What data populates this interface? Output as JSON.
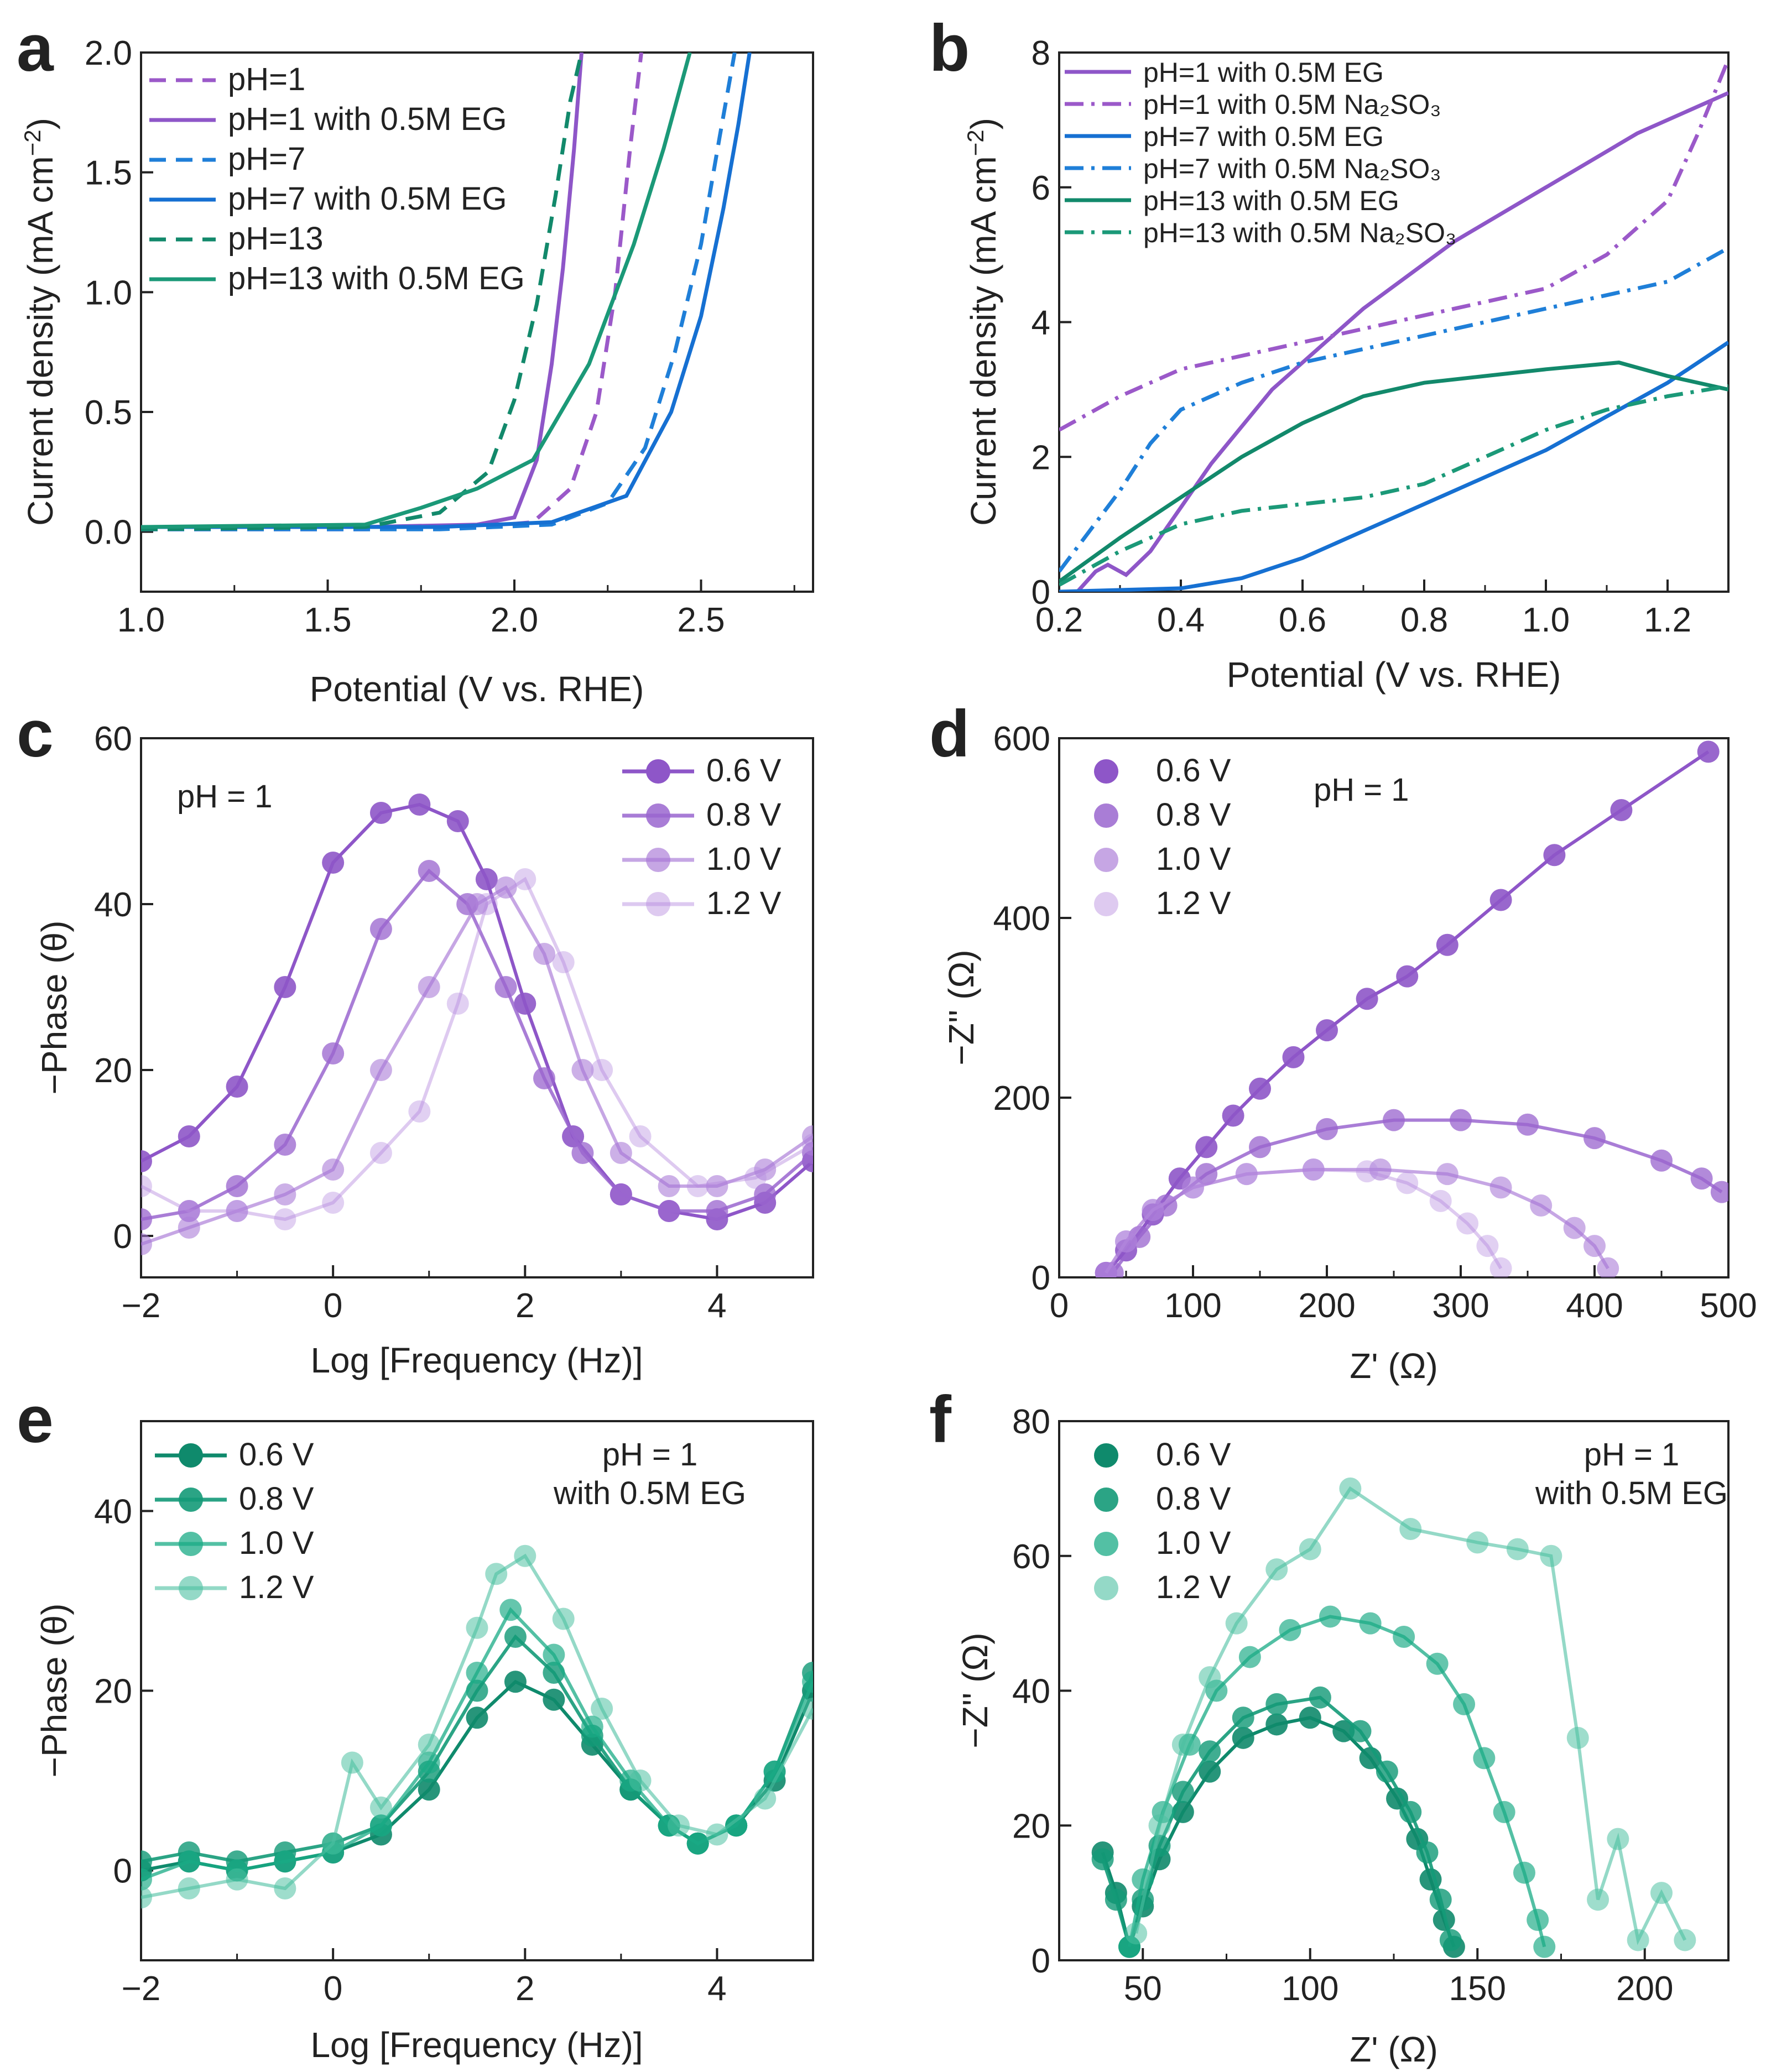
{
  "chart_data": [
    {
      "panel": "a",
      "type": "line",
      "xlabel": "Potential (V vs. RHE)",
      "ylabel": "Current density (mA cm−2)",
      "xlim": [
        1.0,
        2.8
      ],
      "ylim": [
        -0.25,
        2.0
      ],
      "xticks": [
        1.0,
        1.5,
        2.0,
        2.5
      ],
      "yticks": [
        0.0,
        0.5,
        1.0,
        1.5,
        2.0
      ],
      "legend_position": "top-left",
      "series": [
        {
          "name": "pH=1",
          "color": "#9b59c9",
          "dash": "dashed",
          "x": [
            1.0,
            1.6,
            1.9,
            2.05,
            2.15,
            2.22,
            2.27,
            2.31,
            2.34
          ],
          "y": [
            0.01,
            0.01,
            0.02,
            0.04,
            0.18,
            0.5,
            1.0,
            1.6,
            2.0
          ]
        },
        {
          "name": "pH=1 with 0.5M EG",
          "color": "#8e56c8",
          "dash": "solid",
          "x": [
            1.0,
            1.6,
            1.9,
            2.0,
            2.06,
            2.1,
            2.13,
            2.16,
            2.18
          ],
          "y": [
            0.02,
            0.02,
            0.03,
            0.06,
            0.3,
            0.7,
            1.1,
            1.6,
            2.0
          ]
        },
        {
          "name": "pH=7",
          "color": "#1f7fd8",
          "dash": "dashed",
          "x": [
            1.0,
            1.8,
            2.1,
            2.25,
            2.35,
            2.43,
            2.5,
            2.55,
            2.59
          ],
          "y": [
            0.01,
            0.01,
            0.03,
            0.12,
            0.35,
            0.75,
            1.2,
            1.65,
            2.0
          ]
        },
        {
          "name": "pH=7 with 0.5M EG",
          "color": "#1670d2",
          "dash": "solid",
          "x": [
            1.0,
            1.8,
            2.1,
            2.3,
            2.42,
            2.5,
            2.56,
            2.6,
            2.63
          ],
          "y": [
            0.02,
            0.02,
            0.04,
            0.15,
            0.5,
            0.9,
            1.35,
            1.7,
            2.0
          ]
        },
        {
          "name": "pH=13",
          "color": "#12896b",
          "dash": "dashed",
          "x": [
            1.0,
            1.6,
            1.8,
            1.93,
            2.0,
            2.06,
            2.11,
            2.15,
            2.18
          ],
          "y": [
            0.01,
            0.02,
            0.08,
            0.25,
            0.55,
            0.95,
            1.4,
            1.8,
            2.0
          ]
        },
        {
          "name": "pH=13 with 0.5M EG",
          "color": "#1b9978",
          "dash": "solid",
          "x": [
            1.0,
            1.6,
            1.75,
            1.9,
            2.05,
            2.2,
            2.32,
            2.4,
            2.47
          ],
          "y": [
            0.02,
            0.03,
            0.1,
            0.18,
            0.3,
            0.7,
            1.2,
            1.6,
            2.0
          ]
        }
      ]
    },
    {
      "panel": "b",
      "type": "line",
      "xlabel": "Potential (V vs. RHE)",
      "ylabel": "Current density (mA cm−2)",
      "xlim": [
        0.2,
        1.3
      ],
      "ylim": [
        0,
        8
      ],
      "xticks": [
        0.2,
        0.4,
        0.6,
        0.8,
        1.0,
        1.2
      ],
      "yticks": [
        0,
        2,
        4,
        6,
        8
      ],
      "legend_position": "top-left",
      "series": [
        {
          "name": "pH=1 with 0.5M EG",
          "color": "#8e56c8",
          "dash": "solid",
          "x": [
            0.23,
            0.26,
            0.28,
            0.31,
            0.35,
            0.45,
            0.55,
            0.7,
            0.85,
            1.0,
            1.15,
            1.3
          ],
          "y": [
            0.0,
            0.3,
            0.4,
            0.25,
            0.6,
            1.9,
            3.0,
            4.2,
            5.2,
            6.0,
            6.8,
            7.4
          ]
        },
        {
          "name": "pH=1 with 0.5M Na2SO3",
          "color": "#9b59c9",
          "dash": "dashdot",
          "x": [
            0.2,
            0.3,
            0.4,
            0.6,
            0.8,
            1.0,
            1.1,
            1.2,
            1.25,
            1.3
          ],
          "y": [
            2.4,
            2.9,
            3.3,
            3.7,
            4.1,
            4.5,
            5.0,
            5.8,
            6.8,
            7.9
          ]
        },
        {
          "name": "pH=7 with 0.5M EG",
          "color": "#1670d2",
          "dash": "solid",
          "x": [
            0.2,
            0.4,
            0.5,
            0.6,
            0.7,
            0.8,
            0.9,
            1.0,
            1.1,
            1.2,
            1.3
          ],
          "y": [
            0.0,
            0.05,
            0.2,
            0.5,
            0.9,
            1.3,
            1.7,
            2.1,
            2.6,
            3.1,
            3.7
          ]
        },
        {
          "name": "pH=7 with 0.5M Na2SO3",
          "color": "#1f7fd8",
          "dash": "dashdot",
          "x": [
            0.2,
            0.25,
            0.3,
            0.35,
            0.4,
            0.5,
            0.6,
            0.8,
            1.0,
            1.2,
            1.3
          ],
          "y": [
            0.3,
            0.9,
            1.5,
            2.2,
            2.7,
            3.1,
            3.4,
            3.8,
            4.2,
            4.6,
            5.1
          ]
        },
        {
          "name": "pH=13 with 0.5M EG",
          "color": "#12896b",
          "dash": "solid",
          "x": [
            0.2,
            0.3,
            0.4,
            0.5,
            0.6,
            0.7,
            0.8,
            0.9,
            1.0,
            1.12,
            1.2,
            1.3
          ],
          "y": [
            0.15,
            0.8,
            1.4,
            2.0,
            2.5,
            2.9,
            3.1,
            3.2,
            3.3,
            3.4,
            3.2,
            3.0
          ]
        },
        {
          "name": "pH=13 with 0.5M Na2SO3",
          "color": "#1b9978",
          "dash": "dashdot",
          "x": [
            0.2,
            0.3,
            0.4,
            0.5,
            0.6,
            0.7,
            0.8,
            0.9,
            1.0,
            1.1,
            1.2,
            1.3
          ],
          "y": [
            0.1,
            0.6,
            1.0,
            1.2,
            1.3,
            1.4,
            1.6,
            2.0,
            2.4,
            2.7,
            2.9,
            3.05
          ]
        }
      ]
    },
    {
      "panel": "c",
      "type": "scatter",
      "xlabel": "Log [Frequency (Hz)]",
      "ylabel": "−Phase (θ)",
      "xlim": [
        -2,
        5
      ],
      "ylim": [
        -5,
        60
      ],
      "xticks": [
        -2,
        0,
        2,
        4
      ],
      "yticks": [
        0,
        20,
        40,
        60
      ],
      "annotation": "pH = 1",
      "legend_position": "top-right",
      "series": [
        {
          "name": "0.6 V",
          "color": "#8e56c8",
          "opacity": 1.0,
          "x": [
            -2,
            -1.5,
            -1,
            -0.5,
            0,
            0.5,
            0.9,
            1.3,
            1.6,
            2,
            2.5,
            3,
            3.5,
            4,
            4.5,
            5
          ],
          "y": [
            9,
            12,
            18,
            30,
            45,
            51,
            52,
            50,
            43,
            28,
            12,
            5,
            3,
            2,
            4,
            9
          ]
        },
        {
          "name": "0.8 V",
          "color": "#9a66cf",
          "opacity": 0.85,
          "x": [
            -2,
            -1.5,
            -1,
            -0.5,
            0,
            0.5,
            1,
            1.4,
            1.8,
            2.2,
            2.6,
            3,
            3.5,
            4,
            4.5,
            5
          ],
          "y": [
            2,
            3,
            6,
            11,
            22,
            37,
            44,
            40,
            30,
            19,
            10,
            5,
            3,
            3,
            5,
            10
          ]
        },
        {
          "name": "1.0 V",
          "color": "#a777d6",
          "opacity": 0.65,
          "x": [
            -2,
            -1.5,
            -1,
            -0.5,
            0,
            0.5,
            1,
            1.5,
            1.8,
            2.2,
            2.6,
            3,
            3.5,
            4,
            4.5,
            5
          ],
          "y": [
            -1,
            1,
            3,
            5,
            8,
            20,
            30,
            40,
            42,
            34,
            20,
            10,
            6,
            6,
            8,
            12
          ]
        },
        {
          "name": "1.2 V",
          "color": "#b58ade",
          "opacity": 0.45,
          "x": [
            -2,
            -1.5,
            -1,
            -0.5,
            0,
            0.5,
            0.9,
            1.3,
            1.6,
            2,
            2.4,
            2.8,
            3.2,
            3.8,
            4.4,
            5
          ],
          "y": [
            6,
            3,
            3,
            2,
            4,
            10,
            15,
            28,
            40,
            43,
            33,
            20,
            12,
            6,
            7,
            11
          ]
        }
      ]
    },
    {
      "panel": "d",
      "type": "scatter",
      "xlabel": "Z' (Ω)",
      "ylabel": "−Z'' (Ω)",
      "xlim": [
        0,
        500
      ],
      "ylim": [
        0,
        600
      ],
      "xticks": [
        0,
        100,
        200,
        300,
        400,
        500
      ],
      "yticks": [
        0,
        200,
        400,
        600
      ],
      "annotation": "pH = 1",
      "legend_position": "top-left",
      "series": [
        {
          "name": "0.6 V",
          "color": "#8e56c8",
          "opacity": 1.0,
          "x": [
            35,
            50,
            70,
            90,
            110,
            130,
            150,
            175,
            200,
            230,
            260,
            290,
            330,
            370,
            420,
            485
          ],
          "y": [
            5,
            30,
            70,
            110,
            145,
            180,
            210,
            245,
            275,
            310,
            335,
            370,
            420,
            470,
            520,
            585
          ]
        },
        {
          "name": "0.8 V",
          "color": "#9a66cf",
          "opacity": 0.85,
          "x": [
            40,
            60,
            80,
            110,
            150,
            200,
            250,
            300,
            350,
            400,
            450,
            480,
            495
          ],
          "y": [
            5,
            45,
            80,
            115,
            145,
            165,
            175,
            175,
            170,
            155,
            130,
            110,
            95
          ]
        },
        {
          "name": "1.0 V",
          "color": "#a777d6",
          "opacity": 0.65,
          "x": [
            35,
            50,
            70,
            100,
            140,
            190,
            240,
            290,
            330,
            360,
            385,
            400,
            410
          ],
          "y": [
            5,
            40,
            75,
            100,
            115,
            120,
            120,
            115,
            100,
            80,
            55,
            35,
            10
          ]
        },
        {
          "name": "1.2 V",
          "color": "#b58ade",
          "opacity": 0.45,
          "x": [
            35,
            50,
            70,
            100,
            140,
            190,
            230,
            260,
            285,
            305,
            320,
            330
          ],
          "y": [
            5,
            40,
            75,
            100,
            115,
            120,
            118,
            105,
            85,
            60,
            35,
            10
          ]
        }
      ]
    },
    {
      "panel": "e",
      "type": "scatter",
      "xlabel": "Log [Frequency (Hz)]",
      "ylabel": "−Phase (θ)",
      "xlim": [
        -2,
        5
      ],
      "ylim": [
        -10,
        50
      ],
      "xticks": [
        -2,
        0,
        2,
        4
      ],
      "yticks": [
        0,
        20,
        40
      ],
      "annotation": "pH = 1\nwith 0.5M EG",
      "legend_position": "top-left",
      "series": [
        {
          "name": "0.6 V",
          "color": "#0f8a6c",
          "opacity": 1.0,
          "x": [
            -2,
            -1.5,
            -1,
            -0.5,
            0,
            0.5,
            1,
            1.5,
            1.9,
            2.3,
            2.7,
            3.1,
            3.5,
            3.8,
            4.2,
            4.6,
            5
          ],
          "y": [
            0,
            1,
            0,
            1,
            2,
            4,
            9,
            17,
            21,
            19,
            14,
            9,
            5,
            3,
            5,
            10,
            20
          ]
        },
        {
          "name": "0.8 V",
          "color": "#149a78",
          "opacity": 0.9,
          "x": [
            -2,
            -1.5,
            -1,
            -0.5,
            0,
            0.5,
            1,
            1.5,
            1.9,
            2.3,
            2.7,
            3.1,
            3.5,
            3.8,
            4.2,
            4.6,
            5
          ],
          "y": [
            1,
            2,
            1,
            2,
            3,
            5,
            11,
            20,
            26,
            22,
            15,
            9,
            5,
            3,
            5,
            11,
            22
          ]
        },
        {
          "name": "1.0 V",
          "color": "#1aab86",
          "opacity": 0.75,
          "x": [
            -2,
            -1.5,
            -1,
            -0.5,
            0,
            0.5,
            1,
            1.5,
            1.85,
            2.3,
            2.7,
            3.1,
            3.5,
            3.8,
            4.2,
            4.6,
            5
          ],
          "y": [
            -1,
            1,
            0,
            1,
            2,
            5,
            12,
            22,
            29,
            24,
            16,
            10,
            5,
            3,
            5,
            11,
            21
          ]
        },
        {
          "name": "1.2 V",
          "color": "#4cc0a1",
          "opacity": 0.6,
          "x": [
            -2,
            -1.5,
            -1,
            -0.5,
            0,
            0.2,
            0.5,
            1,
            1.5,
            1.7,
            2,
            2.4,
            2.8,
            3.2,
            3.6,
            4,
            4.5,
            5
          ],
          "y": [
            -3,
            -2,
            -1,
            -2,
            3,
            12,
            7,
            14,
            27,
            33,
            35,
            28,
            18,
            10,
            5,
            4,
            8,
            18
          ]
        }
      ]
    },
    {
      "panel": "f",
      "type": "scatter",
      "xlabel": "Z' (Ω)",
      "ylabel": "−Z'' (Ω)",
      "xlim": [
        25,
        225
      ],
      "ylim": [
        0,
        80
      ],
      "xticks": [
        50,
        100,
        150,
        200
      ],
      "yticks": [
        0,
        20,
        40,
        60,
        80
      ],
      "annotation": "pH = 1\nwith 0.5M EG",
      "legend_position": "top-left",
      "series": [
        {
          "name": "0.6 V",
          "color": "#0f8a6c",
          "opacity": 1.0,
          "x": [
            38,
            42,
            46,
            50,
            55,
            62,
            70,
            80,
            90,
            100,
            110,
            118,
            126,
            132,
            136,
            140,
            143
          ],
          "y": [
            16,
            10,
            2,
            8,
            15,
            22,
            28,
            33,
            35,
            36,
            34,
            30,
            24,
            18,
            12,
            6,
            2
          ]
        },
        {
          "name": "0.8 V",
          "color": "#149a78",
          "opacity": 0.9,
          "x": [
            38,
            42,
            46,
            50,
            55,
            62,
            70,
            80,
            90,
            103,
            115,
            123,
            130,
            135,
            139,
            142
          ],
          "y": [
            15,
            9,
            2,
            9,
            17,
            25,
            31,
            36,
            38,
            39,
            34,
            28,
            22,
            16,
            9,
            3
          ]
        },
        {
          "name": "1.0 V",
          "color": "#1aab86",
          "opacity": 0.75,
          "x": [
            46,
            50,
            56,
            64,
            72,
            82,
            94,
            106,
            118,
            128,
            138,
            146,
            152,
            158,
            164,
            168,
            170
          ],
          "y": [
            2,
            12,
            22,
            32,
            40,
            45,
            49,
            51,
            50,
            48,
            44,
            38,
            30,
            22,
            13,
            6,
            2
          ]
        },
        {
          "name": "1.2 V",
          "color": "#4cc0a1",
          "opacity": 0.6,
          "x": [
            48,
            55,
            62,
            70,
            78,
            90,
            100,
            112,
            130,
            150,
            162,
            172,
            180,
            186,
            192,
            198,
            205,
            212
          ],
          "y": [
            4,
            20,
            32,
            42,
            50,
            58,
            61,
            70,
            64,
            62,
            61,
            60,
            33,
            9,
            18,
            3,
            10,
            3
          ]
        }
      ]
    }
  ]
}
